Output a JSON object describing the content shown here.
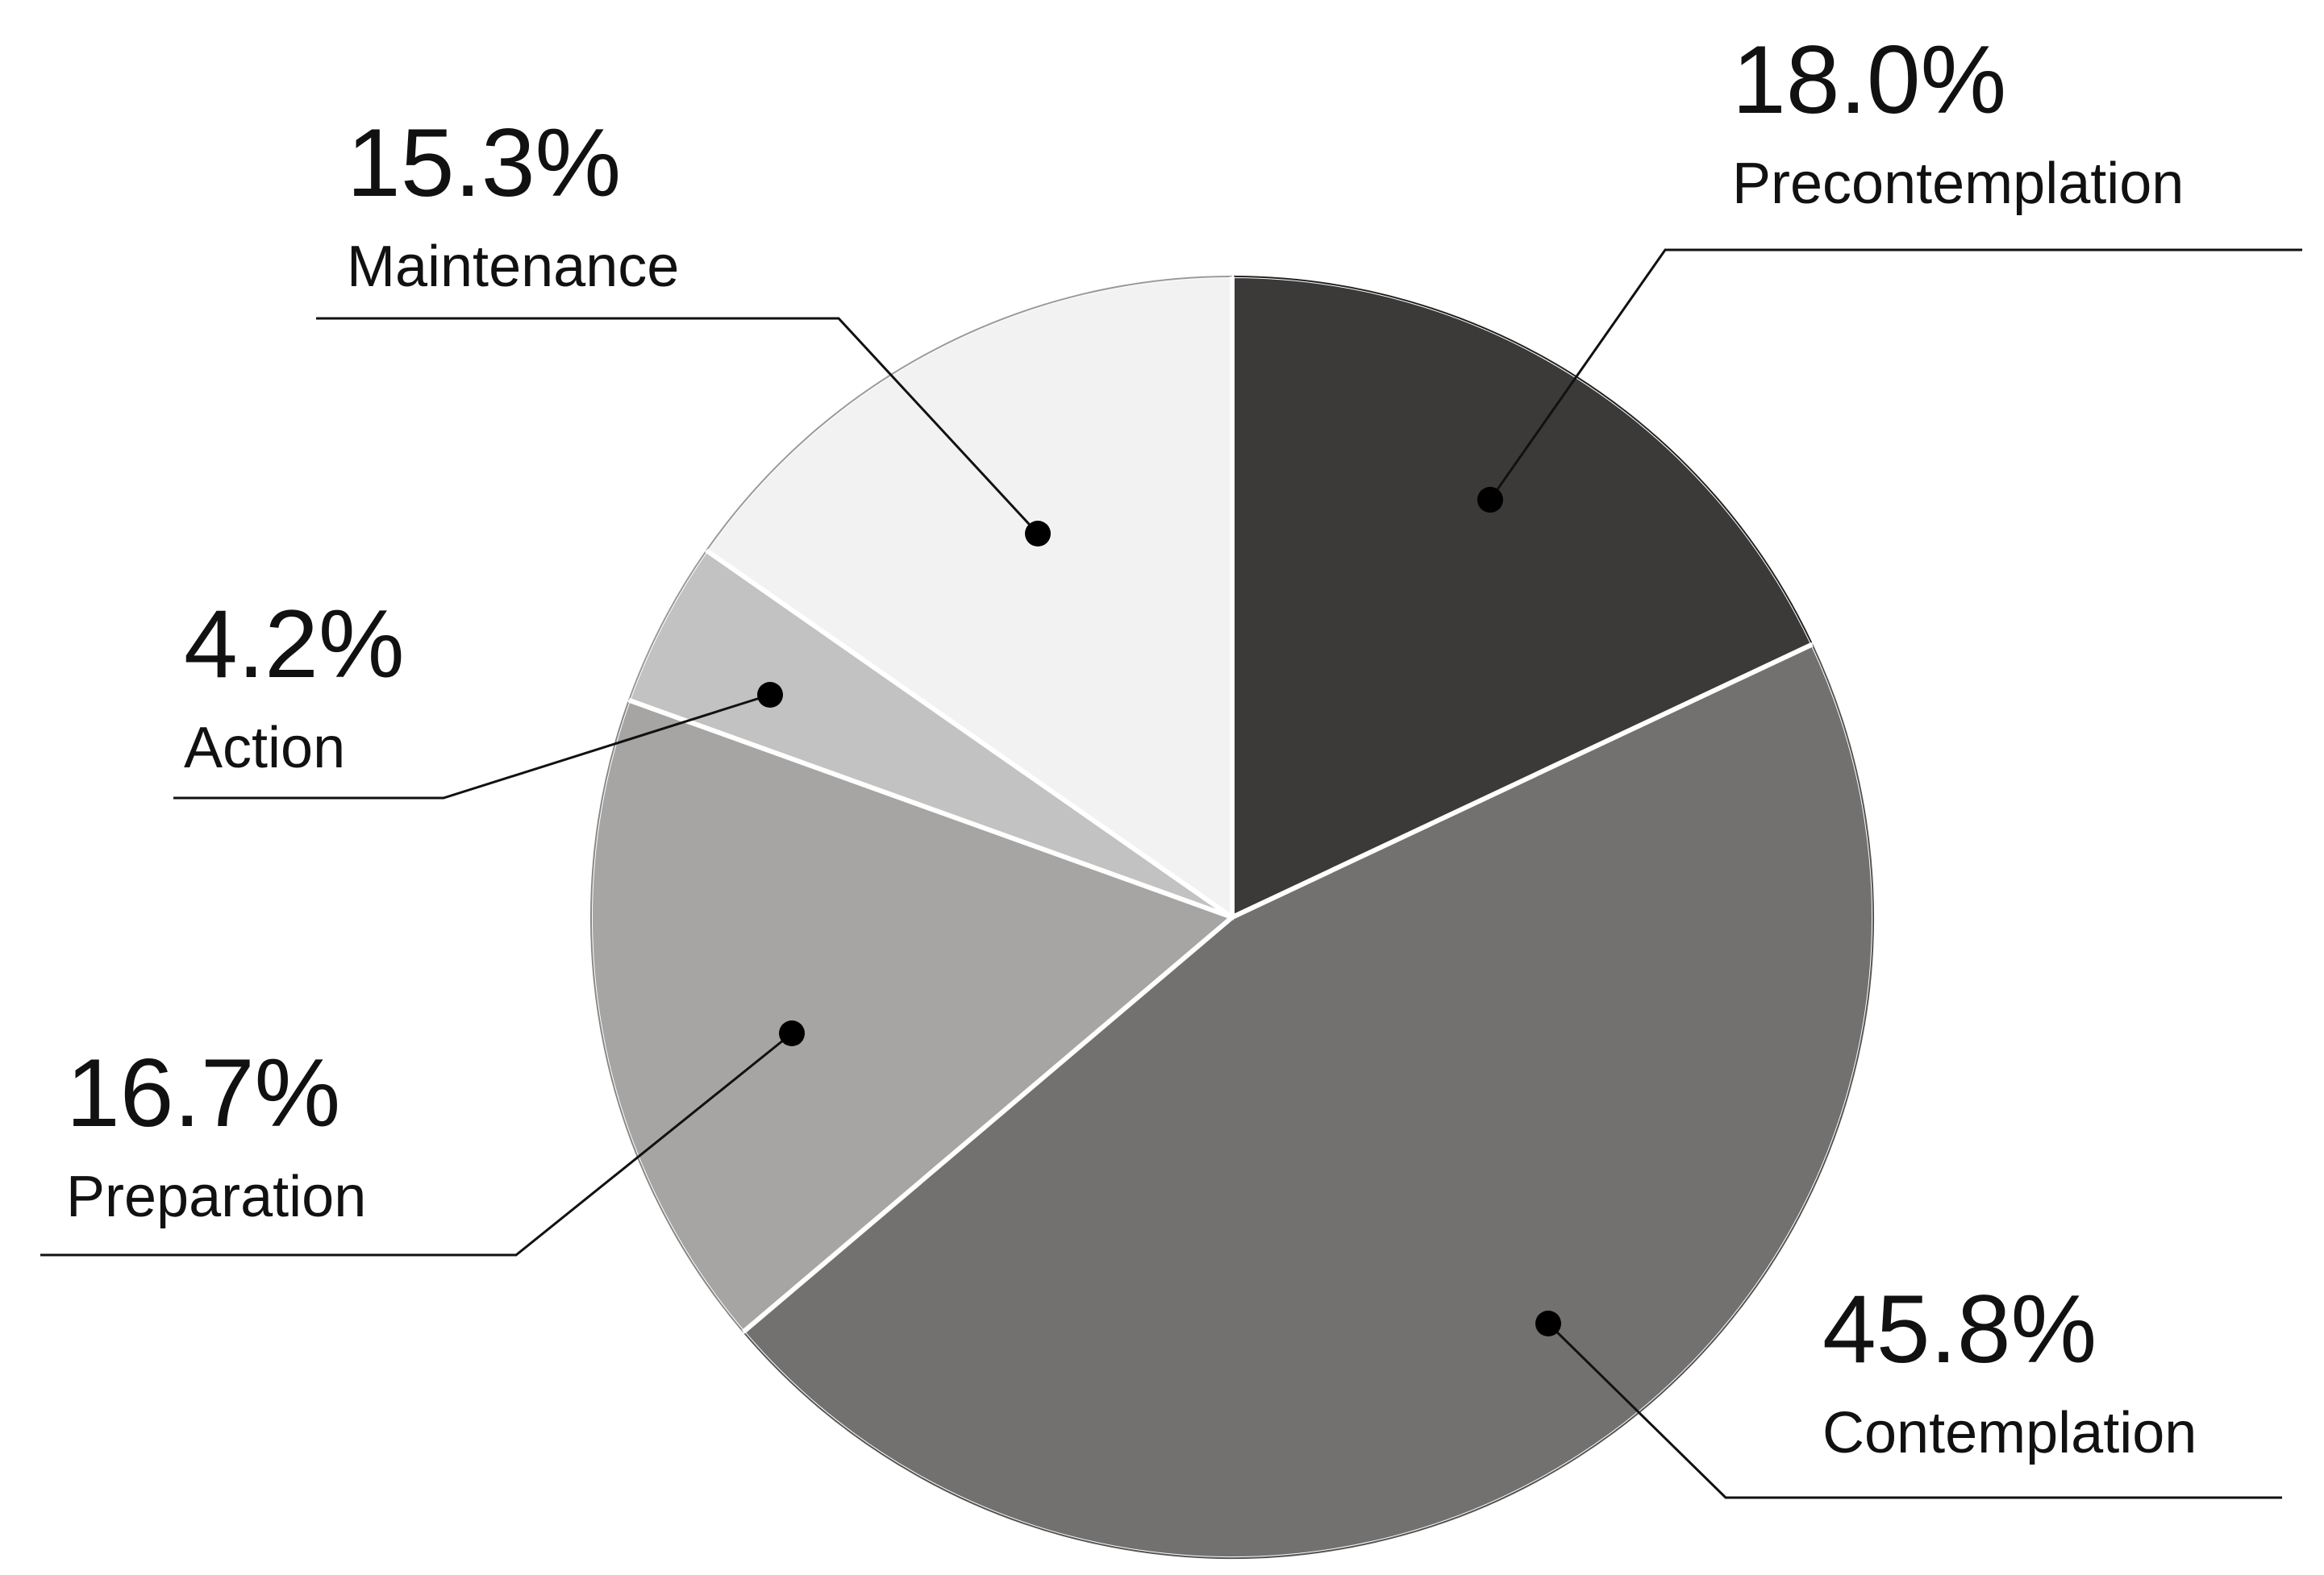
{
  "chart_data": {
    "type": "pie",
    "title": "",
    "slices": [
      {
        "label": "Precontemplation",
        "value": 18.0,
        "value_label": "18.0%",
        "color": "#3b3a39"
      },
      {
        "label": "Contemplation",
        "value": 45.8,
        "value_label": "45.8%",
        "color": "#737070"
      },
      {
        "label": "Preparation",
        "value": 16.7,
        "value_label": "16.7%",
        "color": "#a6a5a4"
      },
      {
        "label": "Action",
        "value": 4.2,
        "value_label": "4.2%",
        "color": "#c3c2c2"
      },
      {
        "label": "Maintenance",
        "value": 15.3,
        "value_label": "15.3%",
        "color": "#f2f2f2"
      }
    ],
    "start_angle": "12 o'clock",
    "direction": "clockwise",
    "legend": "none"
  }
}
